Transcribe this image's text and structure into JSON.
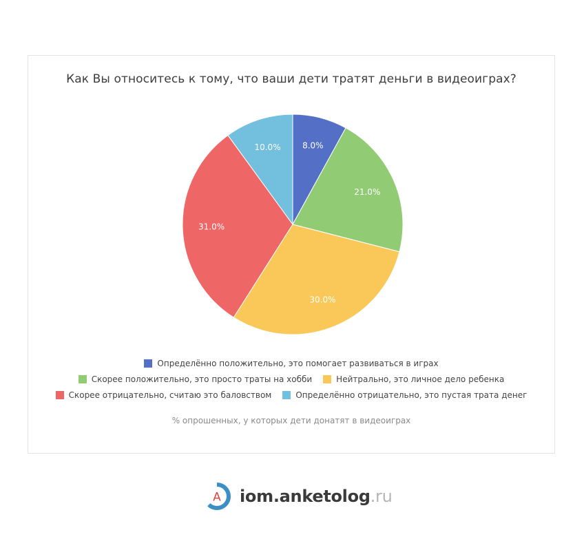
{
  "chart_data": {
    "type": "pie",
    "title": "Как Вы относитесь к тому, что ваши дети тратят деньги в видеоиграх?",
    "caption": "% опрошенных, у которых дети донатят в видеоиграх",
    "legend_position": "bottom",
    "slices": [
      {
        "name": "Определённо положительно, это помогает развиваться в играх",
        "value": 8.0,
        "label": "8.0%",
        "color": "#5470c6"
      },
      {
        "name": "Скорее положительно, это просто траты на хобби",
        "value": 21.0,
        "label": "21.0%",
        "color": "#91cc75"
      },
      {
        "name": "Нейтрально, это личное дело ребенка",
        "value": 30.0,
        "label": "30.0%",
        "color": "#fac858"
      },
      {
        "name": "Скорее отрицательно, считаю это баловством",
        "value": 31.0,
        "label": "31.0%",
        "color": "#ee6666"
      },
      {
        "name": "Определённо отрицательно, это пустая трата денег",
        "value": 10.0,
        "label": "10.0%",
        "color": "#73c0de"
      }
    ]
  },
  "brand": {
    "logo_letter": "A",
    "name": "iom.anketolog",
    "tld": ".ru",
    "logo_colors": {
      "ring": "#3b8fc4",
      "ring_light": "#9bcbe6",
      "letter": "#e0443c"
    }
  }
}
